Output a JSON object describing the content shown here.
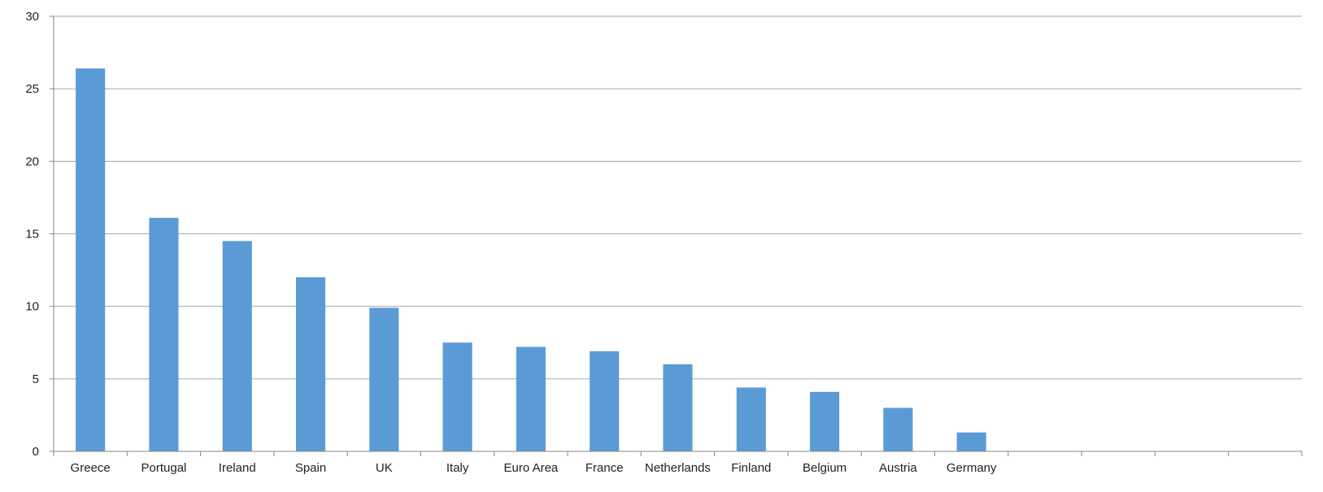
{
  "chart_data": {
    "type": "bar",
    "categories": [
      "Greece",
      "Portugal",
      "Ireland",
      "Spain",
      "UK",
      "Italy",
      "Euro Area",
      "France",
      "Netherlands",
      "Finland",
      "Belgium",
      "Austria",
      "Germany",
      "",
      "",
      "",
      ""
    ],
    "values": [
      26.4,
      16.1,
      14.5,
      12.0,
      9.9,
      7.5,
      7.2,
      6.9,
      6.0,
      4.4,
      4.1,
      3.0,
      1.3,
      null,
      null,
      null,
      null
    ],
    "yticks": [
      0,
      5,
      10,
      15,
      20,
      25,
      30
    ],
    "ylim": [
      0,
      30
    ],
    "grid": true,
    "bar_color": "#5B9BD5",
    "grid_color": "#A6A6A6",
    "axis_color": "#868686"
  }
}
